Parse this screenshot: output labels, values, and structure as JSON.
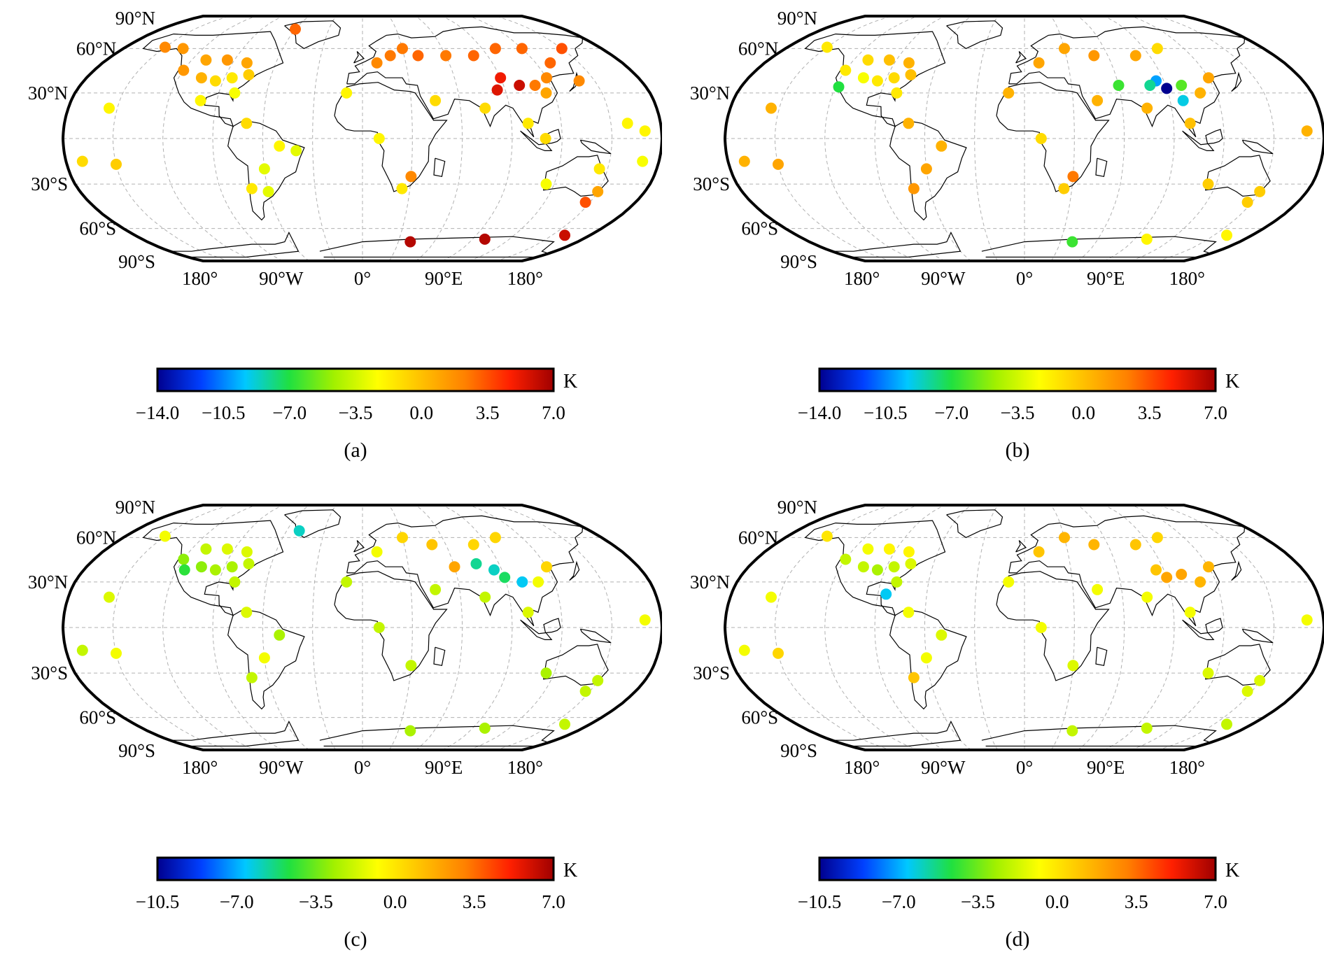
{
  "lat_labels": [
    "90°N",
    "60°N",
    "30°N",
    "30°S",
    "60°S",
    "90°S"
  ],
  "lon_labels": [
    "180°",
    "90°W",
    "0°",
    "90°E",
    "180°"
  ],
  "unit": "K",
  "colorbar_colors": [
    "#00008f",
    "#0040ff",
    "#00c8ff",
    "#20e040",
    "#a0f000",
    "#ffff00",
    "#ffc000",
    "#ff8000",
    "#ff2000",
    "#a00000"
  ],
  "panels": [
    {
      "label": "(a)",
      "vmin": -14.0,
      "vmax": 7.0,
      "ticks": [
        "−14.0",
        "−10.5",
        "−7.0",
        "−3.5",
        "0.0",
        "3.5",
        "7.0"
      ],
      "stations_summary": "warm bias (0 to 7 K) across most northern-hemisphere stations",
      "stations": [
        {
          "lon": -120,
          "lat": 45,
          "v": 1.5
        },
        {
          "lon": -105,
          "lat": 40,
          "v": 0.5
        },
        {
          "lon": -95,
          "lat": 38,
          "v": -1.0
        },
        {
          "lon": -85,
          "lat": 40,
          "v": -1.5
        },
        {
          "lon": -75,
          "lat": 42,
          "v": -0.5
        },
        {
          "lon": -110,
          "lat": 52,
          "v": 1.0
        },
        {
          "lon": -95,
          "lat": 52,
          "v": 1.5
        },
        {
          "lon": -80,
          "lat": 50,
          "v": 1.0
        },
        {
          "lon": -150,
          "lat": 61,
          "v": 2.0
        },
        {
          "lon": -135,
          "lat": 60,
          "v": 1.5
        },
        {
          "lon": -80,
          "lat": 30,
          "v": -2.5
        },
        {
          "lon": -100,
          "lat": 25,
          "v": -2.0
        },
        {
          "lon": -155,
          "lat": 20,
          "v": -2.0
        },
        {
          "lon": -70,
          "lat": 10,
          "v": -1.0
        },
        {
          "lon": -50,
          "lat": -5,
          "v": -2.0
        },
        {
          "lon": -60,
          "lat": -20,
          "v": -3.0
        },
        {
          "lon": -70,
          "lat": -33,
          "v": -1.5
        },
        {
          "lon": -60,
          "lat": -35,
          "v": -3.0
        },
        {
          "lon": -170,
          "lat": -15,
          "v": -1.0
        },
        {
          "lon": -150,
          "lat": -17,
          "v": -0.5
        },
        {
          "lon": -40,
          "lat": -8,
          "v": -3.0
        },
        {
          "lon": 10,
          "lat": 50,
          "v": 2.0
        },
        {
          "lon": 20,
          "lat": 55,
          "v": 2.5
        },
        {
          "lon": 30,
          "lat": 60,
          "v": 2.5
        },
        {
          "lon": 40,
          "lat": 55,
          "v": 3.0
        },
        {
          "lon": 60,
          "lat": 55,
          "v": 2.5
        },
        {
          "lon": 80,
          "lat": 55,
          "v": 3.0
        },
        {
          "lon": 100,
          "lat": 60,
          "v": 3.0
        },
        {
          "lon": 120,
          "lat": 60,
          "v": 3.0
        },
        {
          "lon": 90,
          "lat": 40,
          "v": 5.0
        },
        {
          "lon": 100,
          "lat": 35,
          "v": 6.0
        },
        {
          "lon": 85,
          "lat": 32,
          "v": 5.5
        },
        {
          "lon": 110,
          "lat": 35,
          "v": 2.5
        },
        {
          "lon": 115,
          "lat": 30,
          "v": 1.0
        },
        {
          "lon": 120,
          "lat": 40,
          "v": 2.0
        },
        {
          "lon": 75,
          "lat": 20,
          "v": -1.0
        },
        {
          "lon": 100,
          "lat": 10,
          "v": -1.5
        },
        {
          "lon": 110,
          "lat": 0,
          "v": -1.0
        },
        {
          "lon": 140,
          "lat": 38,
          "v": 2.0
        },
        {
          "lon": 130,
          "lat": 50,
          "v": 3.0
        },
        {
          "lon": 150,
          "lat": 60,
          "v": 3.5
        },
        {
          "lon": 45,
          "lat": 25,
          "v": -1.0
        },
        {
          "lon": 10,
          "lat": 0,
          "v": -2.0
        },
        {
          "lon": 30,
          "lat": -25,
          "v": 2.0
        },
        {
          "lon": 25,
          "lat": -33,
          "v": -1.5
        },
        {
          "lon": 115,
          "lat": -30,
          "v": -2.5
        },
        {
          "lon": 145,
          "lat": -20,
          "v": -1.5
        },
        {
          "lon": 150,
          "lat": -35,
          "v": 1.0
        },
        {
          "lon": 147,
          "lat": -42,
          "v": 3.5
        },
        {
          "lon": 170,
          "lat": -15,
          "v": -2.5
        },
        {
          "lon": 160,
          "lat": 10,
          "v": -2.0
        },
        {
          "lon": 170,
          "lat": 5,
          "v": -2.0
        },
        {
          "lon": 40,
          "lat": -70,
          "v": 6.5
        },
        {
          "lon": 100,
          "lat": -68,
          "v": 6.5
        },
        {
          "lon": 160,
          "lat": -65,
          "v": 6.0
        },
        {
          "lon": -10,
          "lat": 30,
          "v": -2.0
        },
        {
          "lon": -60,
          "lat": 75,
          "v": 3.0
        }
      ]
    },
    {
      "label": "(b)",
      "vmin": -14.0,
      "vmax": 7.0,
      "ticks": [
        "−14.0",
        "−10.5",
        "−7.0",
        "−3.5",
        "0.0",
        "3.5",
        "7.0"
      ],
      "stations_summary": "mostly near zero, a few strongly negative stations over the Tibetan Plateau",
      "stations": [
        {
          "lon": -120,
          "lat": 45,
          "v": -1.5
        },
        {
          "lon": -105,
          "lat": 40,
          "v": -2.5
        },
        {
          "lon": -95,
          "lat": 38,
          "v": -1.5
        },
        {
          "lon": -85,
          "lat": 40,
          "v": -1.0
        },
        {
          "lon": -75,
          "lat": 42,
          "v": 0.0
        },
        {
          "lon": -110,
          "lat": 52,
          "v": -1.0
        },
        {
          "lon": -95,
          "lat": 52,
          "v": 0.0
        },
        {
          "lon": -80,
          "lat": 50,
          "v": 0.5
        },
        {
          "lon": -150,
          "lat": 61,
          "v": -1.5
        },
        {
          "lon": -118,
          "lat": 34,
          "v": -7.0
        },
        {
          "lon": -80,
          "lat": 30,
          "v": -1.5
        },
        {
          "lon": -155,
          "lat": 20,
          "v": 0.5
        },
        {
          "lon": -70,
          "lat": 10,
          "v": 0.5
        },
        {
          "lon": -50,
          "lat": -5,
          "v": 0.5
        },
        {
          "lon": -60,
          "lat": -20,
          "v": 1.0
        },
        {
          "lon": -70,
          "lat": -33,
          "v": 1.5
        },
        {
          "lon": -170,
          "lat": -15,
          "v": 0.5
        },
        {
          "lon": -150,
          "lat": -17,
          "v": 1.0
        },
        {
          "lon": 10,
          "lat": 50,
          "v": 1.0
        },
        {
          "lon": 30,
          "lat": 60,
          "v": 1.0
        },
        {
          "lon": 50,
          "lat": 55,
          "v": 1.5
        },
        {
          "lon": 80,
          "lat": 55,
          "v": 1.0
        },
        {
          "lon": 100,
          "lat": 60,
          "v": -1.0
        },
        {
          "lon": 85,
          "lat": 38,
          "v": -10.0
        },
        {
          "lon": 90,
          "lat": 33,
          "v": -14.0
        },
        {
          "lon": 80,
          "lat": 35,
          "v": -8.0
        },
        {
          "lon": 100,
          "lat": 35,
          "v": -6.0
        },
        {
          "lon": 60,
          "lat": 35,
          "v": -6.5
        },
        {
          "lon": 110,
          "lat": 30,
          "v": 0.5
        },
        {
          "lon": 120,
          "lat": 40,
          "v": 1.0
        },
        {
          "lon": 98,
          "lat": 25,
          "v": -9.0
        },
        {
          "lon": 75,
          "lat": 20,
          "v": 0.5
        },
        {
          "lon": 100,
          "lat": 10,
          "v": 0.0
        },
        {
          "lon": 45,
          "lat": 25,
          "v": 0.5
        },
        {
          "lon": 10,
          "lat": 0,
          "v": -1.0
        },
        {
          "lon": 30,
          "lat": -25,
          "v": 2.5
        },
        {
          "lon": 25,
          "lat": -33,
          "v": -0.5
        },
        {
          "lon": 115,
          "lat": -30,
          "v": -0.5
        },
        {
          "lon": 150,
          "lat": -35,
          "v": -0.5
        },
        {
          "lon": 147,
          "lat": -42,
          "v": -0.5
        },
        {
          "lon": 170,
          "lat": 5,
          "v": 0.5
        },
        {
          "lon": 40,
          "lat": -70,
          "v": -6.5
        },
        {
          "lon": 100,
          "lat": -68,
          "v": -2.0
        },
        {
          "lon": 160,
          "lat": -65,
          "v": -2.0
        },
        {
          "lon": -10,
          "lat": 30,
          "v": 0.5
        }
      ]
    },
    {
      "label": "(c)",
      "vmin": -10.5,
      "vmax": 7.0,
      "ticks": [
        "−10.5",
        "−7.0",
        "−3.5",
        "0.0",
        "3.5",
        "7.0"
      ],
      "stations_summary": "mostly slightly negative to near zero, negative cluster over central Asia",
      "stations": [
        {
          "lon": -120,
          "lat": 45,
          "v": -3.0
        },
        {
          "lon": -115,
          "lat": 38,
          "v": -4.5
        },
        {
          "lon": -105,
          "lat": 40,
          "v": -3.0
        },
        {
          "lon": -95,
          "lat": 38,
          "v": -2.5
        },
        {
          "lon": -85,
          "lat": 40,
          "v": -2.5
        },
        {
          "lon": -75,
          "lat": 42,
          "v": -2.0
        },
        {
          "lon": -110,
          "lat": 52,
          "v": -2.0
        },
        {
          "lon": -95,
          "lat": 52,
          "v": -1.5
        },
        {
          "lon": -80,
          "lat": 50,
          "v": -1.5
        },
        {
          "lon": -150,
          "lat": 61,
          "v": -1.0
        },
        {
          "lon": -50,
          "lat": 65,
          "v": -6.0
        },
        {
          "lon": -80,
          "lat": 30,
          "v": -2.0
        },
        {
          "lon": -155,
          "lat": 20,
          "v": -1.5
        },
        {
          "lon": -70,
          "lat": 10,
          "v": -1.5
        },
        {
          "lon": -50,
          "lat": -5,
          "v": -2.5
        },
        {
          "lon": -60,
          "lat": -20,
          "v": -1.0
        },
        {
          "lon": -70,
          "lat": -33,
          "v": -2.0
        },
        {
          "lon": -170,
          "lat": -15,
          "v": -2.0
        },
        {
          "lon": -150,
          "lat": -17,
          "v": -1.0
        },
        {
          "lon": 10,
          "lat": 50,
          "v": -1.0
        },
        {
          "lon": 30,
          "lat": 60,
          "v": 0.5
        },
        {
          "lon": 50,
          "lat": 55,
          "v": 1.0
        },
        {
          "lon": 80,
          "lat": 55,
          "v": 0.5
        },
        {
          "lon": 100,
          "lat": 60,
          "v": 0.5
        },
        {
          "lon": 60,
          "lat": 40,
          "v": 2.0
        },
        {
          "lon": 75,
          "lat": 42,
          "v": -5.5
        },
        {
          "lon": 85,
          "lat": 38,
          "v": -6.0
        },
        {
          "lon": 90,
          "lat": 33,
          "v": -5.0
        },
        {
          "lon": 100,
          "lat": 30,
          "v": -6.5
        },
        {
          "lon": 110,
          "lat": 30,
          "v": -1.0
        },
        {
          "lon": 120,
          "lat": 40,
          "v": 0.5
        },
        {
          "lon": 75,
          "lat": 20,
          "v": -2.0
        },
        {
          "lon": 100,
          "lat": 10,
          "v": -1.5
        },
        {
          "lon": 45,
          "lat": 25,
          "v": -2.0
        },
        {
          "lon": 10,
          "lat": 0,
          "v": -2.0
        },
        {
          "lon": 30,
          "lat": -25,
          "v": -2.0
        },
        {
          "lon": 115,
          "lat": -30,
          "v": -2.5
        },
        {
          "lon": 150,
          "lat": -35,
          "v": -2.0
        },
        {
          "lon": 147,
          "lat": -42,
          "v": -2.0
        },
        {
          "lon": 170,
          "lat": 5,
          "v": -1.0
        },
        {
          "lon": 40,
          "lat": -70,
          "v": -2.5
        },
        {
          "lon": 100,
          "lat": -68,
          "v": -2.5
        },
        {
          "lon": 160,
          "lat": -65,
          "v": -2.0
        },
        {
          "lon": -10,
          "lat": 30,
          "v": -2.0
        }
      ]
    },
    {
      "label": "(d)",
      "vmin": -10.5,
      "vmax": 7.0,
      "ticks": [
        "−10.5",
        "−7.0",
        "−3.5",
        "0.0",
        "3.5",
        "7.0"
      ],
      "stations_summary": "mostly near zero to slightly positive; one negative station in the Caribbean",
      "stations": [
        {
          "lon": -120,
          "lat": 45,
          "v": -2.0
        },
        {
          "lon": -105,
          "lat": 40,
          "v": -2.0
        },
        {
          "lon": -95,
          "lat": 38,
          "v": -2.5
        },
        {
          "lon": -85,
          "lat": 40,
          "v": -2.0
        },
        {
          "lon": -75,
          "lat": 42,
          "v": -1.5
        },
        {
          "lon": -110,
          "lat": 52,
          "v": -1.0
        },
        {
          "lon": -95,
          "lat": 52,
          "v": -0.5
        },
        {
          "lon": -80,
          "lat": 50,
          "v": -0.5
        },
        {
          "lon": -150,
          "lat": 61,
          "v": 0.0
        },
        {
          "lon": -80,
          "lat": 30,
          "v": -2.0
        },
        {
          "lon": -85,
          "lat": 22,
          "v": -6.5
        },
        {
          "lon": -155,
          "lat": 20,
          "v": -1.0
        },
        {
          "lon": -70,
          "lat": 10,
          "v": -1.0
        },
        {
          "lon": -50,
          "lat": -5,
          "v": -1.5
        },
        {
          "lon": -60,
          "lat": -20,
          "v": -1.0
        },
        {
          "lon": -70,
          "lat": -33,
          "v": 1.0
        },
        {
          "lon": -170,
          "lat": -15,
          "v": -1.0
        },
        {
          "lon": -150,
          "lat": -17,
          "v": 0.5
        },
        {
          "lon": 10,
          "lat": 50,
          "v": 1.0
        },
        {
          "lon": 30,
          "lat": 60,
          "v": 1.5
        },
        {
          "lon": 50,
          "lat": 55,
          "v": 1.5
        },
        {
          "lon": 80,
          "lat": 55,
          "v": 1.0
        },
        {
          "lon": 100,
          "lat": 60,
          "v": 0.5
        },
        {
          "lon": 85,
          "lat": 38,
          "v": 1.0
        },
        {
          "lon": 90,
          "lat": 33,
          "v": 2.0
        },
        {
          "lon": 100,
          "lat": 35,
          "v": 2.0
        },
        {
          "lon": 110,
          "lat": 30,
          "v": 1.5
        },
        {
          "lon": 120,
          "lat": 40,
          "v": 1.5
        },
        {
          "lon": 75,
          "lat": 20,
          "v": -1.0
        },
        {
          "lon": 100,
          "lat": 10,
          "v": -1.0
        },
        {
          "lon": 45,
          "lat": 25,
          "v": -1.0
        },
        {
          "lon": 10,
          "lat": 0,
          "v": -1.0
        },
        {
          "lon": 30,
          "lat": -25,
          "v": -1.5
        },
        {
          "lon": 115,
          "lat": -30,
          "v": -1.5
        },
        {
          "lon": 150,
          "lat": -35,
          "v": -1.5
        },
        {
          "lon": 147,
          "lat": -42,
          "v": -1.5
        },
        {
          "lon": 170,
          "lat": 5,
          "v": -1.0
        },
        {
          "lon": 40,
          "lat": -70,
          "v": -2.0
        },
        {
          "lon": 100,
          "lat": -68,
          "v": -2.0
        },
        {
          "lon": 160,
          "lat": -65,
          "v": -2.0
        },
        {
          "lon": -10,
          "lat": 30,
          "v": -1.0
        }
      ]
    }
  ]
}
